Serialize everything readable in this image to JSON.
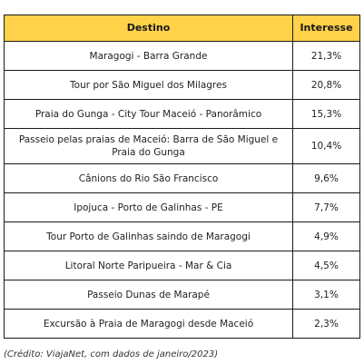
{
  "table": {
    "headers": [
      "Destino",
      "Interesse"
    ],
    "rows": [
      {
        "destino": "Maragogi - Barra Grande",
        "interesse": "21,3%"
      },
      {
        "destino": "Tour por São Miguel dos Milagres",
        "interesse": "20,8%"
      },
      {
        "destino": "Praia do Gunga - City Tour Maceió - Panorâmico",
        "interesse": "15,3%"
      },
      {
        "destino": "Passeio pelas praias de Maceió: Barra de São Miguel e Praia do Gunga",
        "interesse": "10,4%"
      },
      {
        "destino": "Cânions do Rio São Francisco",
        "interesse": "9,6%"
      },
      {
        "destino": "Ipojuca - Porto de Galinhas - PE",
        "interesse": "7,7%"
      },
      {
        "destino": "Tour Porto de Galinhas saindo de Maragogi",
        "interesse": "4,9%"
      },
      {
        "destino": "Litoral Norte Paripueira - Mar & Cia",
        "interesse": "4,5%"
      },
      {
        "destino": "Passeio Dunas de Marapé",
        "interesse": "3,1%"
      },
      {
        "destino": "Excursão à Praia de Maragogi desde Maceió",
        "interesse": "2,3%"
      }
    ]
  },
  "credit": "(Crédito: ViajaNet, com dados de janeiro/2023)",
  "colors": {
    "header_bg": "#ffd24a",
    "border": "#1a1a1a"
  }
}
